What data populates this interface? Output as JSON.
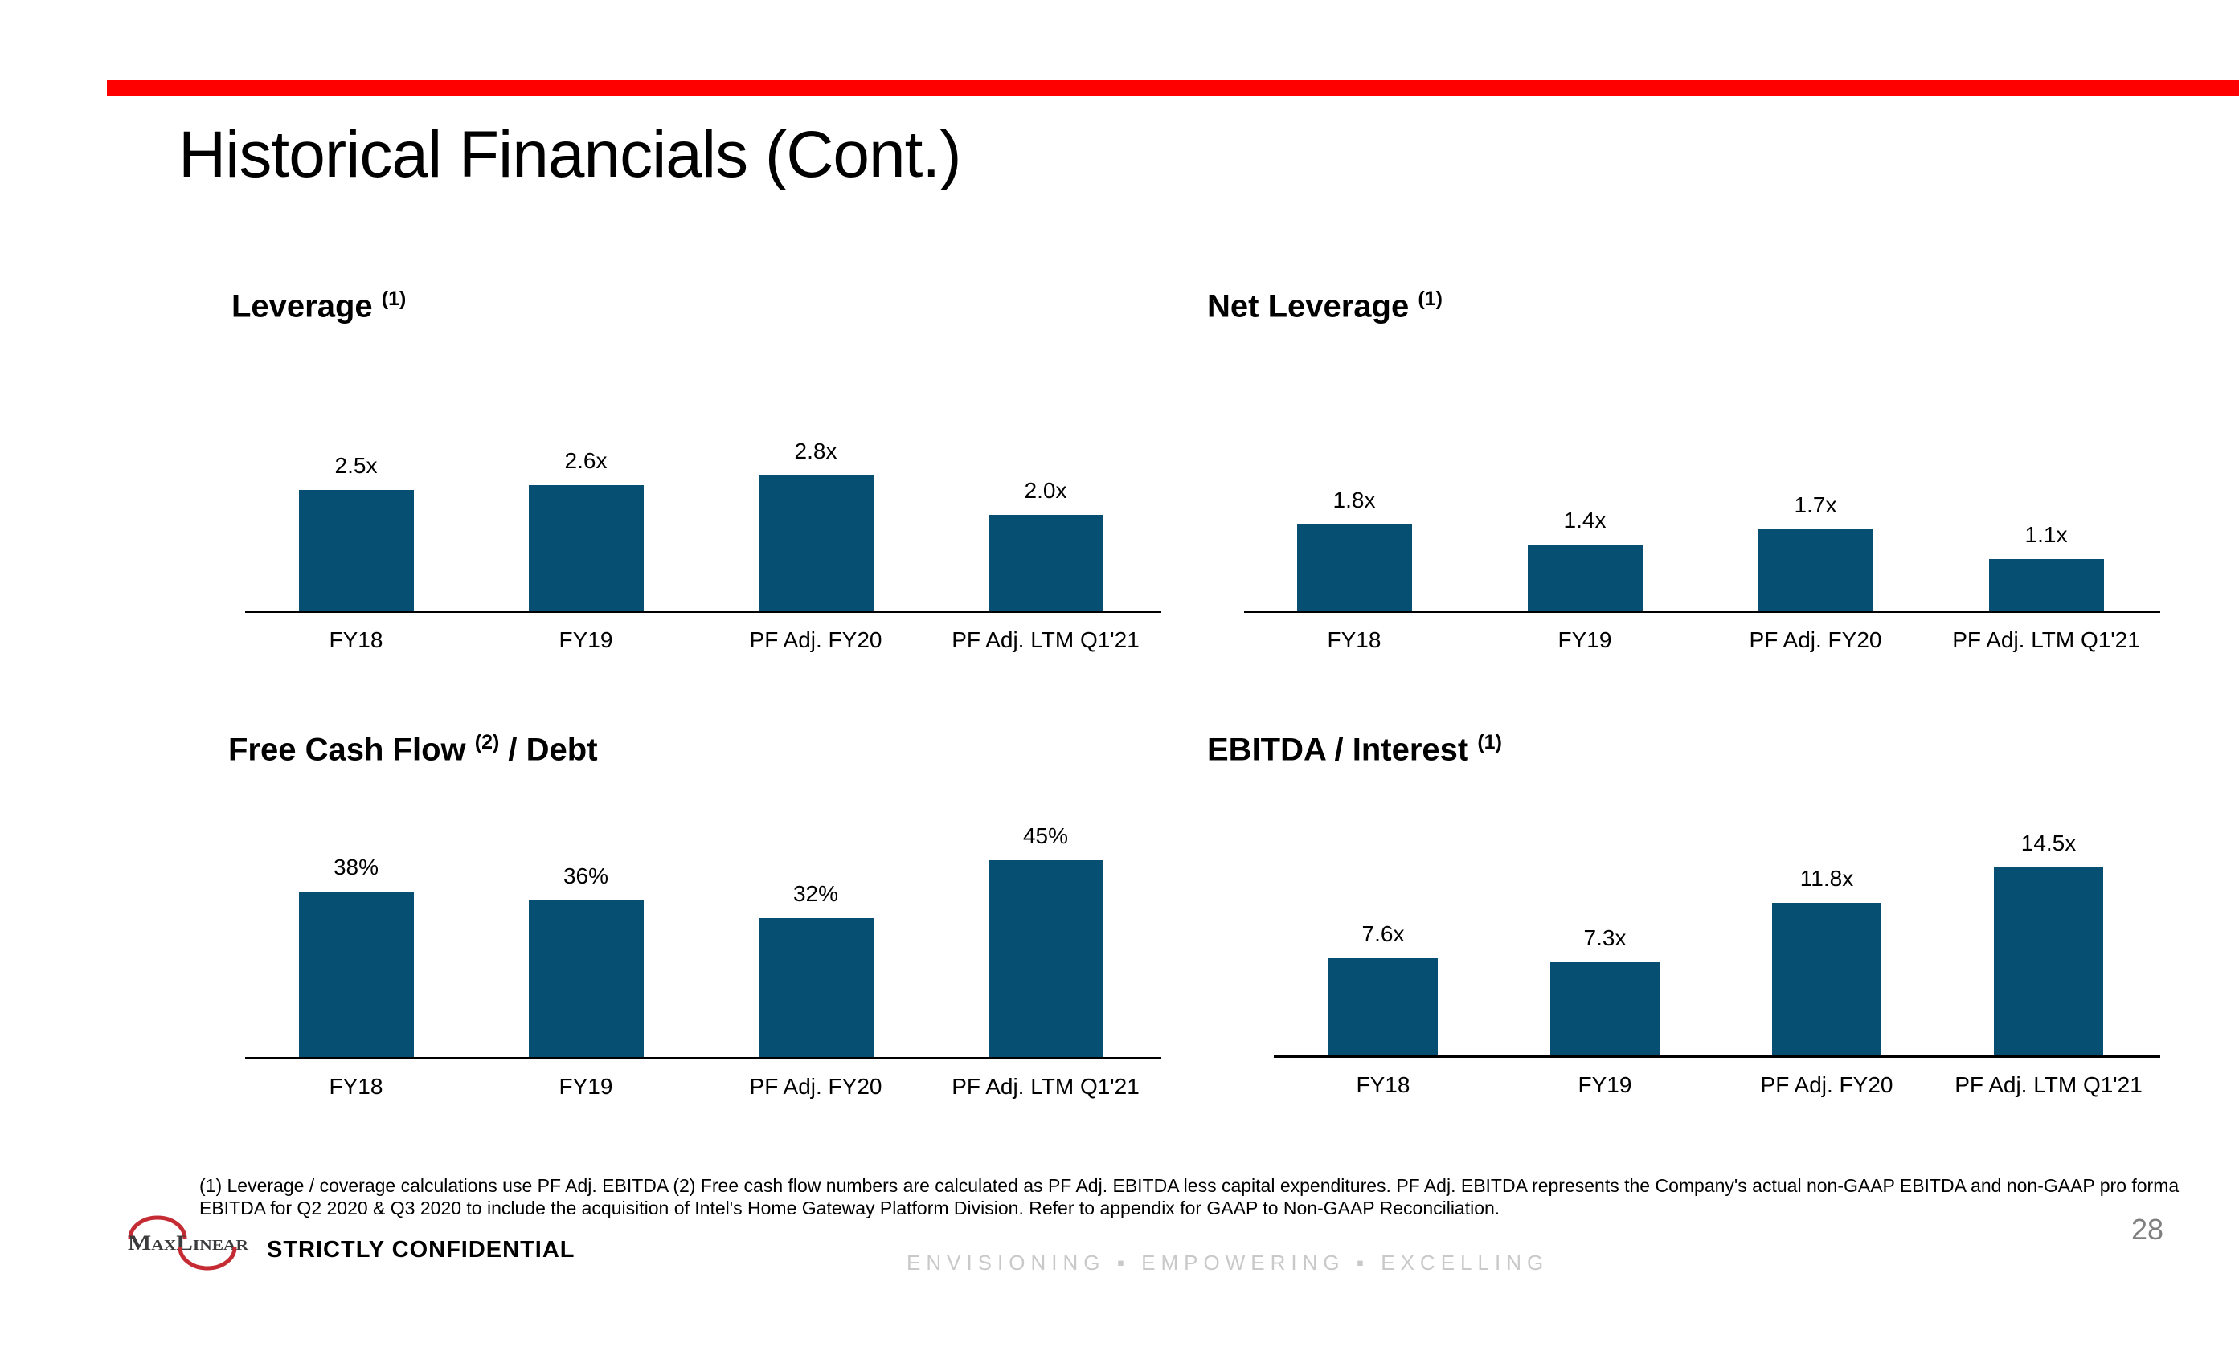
{
  "slide": {
    "title": "Historical Financials (Cont.)",
    "page_number": "28",
    "footnote_lines": [
      "(1) Leverage / coverage calculations use PF Adj. EBITDA (2) Free cash flow numbers are calculated as PF Adj. EBITDA less capital expenditures. PF Adj. EBITDA represents the Company's actual non-GAAP EBITDA and non-GAAP pro forma",
      "EBITDA for Q2 2020 & Q3 2020 to include the acquisition of Intel's Home Gateway Platform Division. Refer to appendix for GAAP to Non-GAAP Reconciliation."
    ],
    "footer": {
      "logo_text": "MaxLinear",
      "confidential": "STRICTLY CONFIDENTIAL",
      "tagline": "ENVISIONING ▪ EMPOWERING ▪ EXCELLING"
    }
  },
  "colors": {
    "accent_red": "#ff0000",
    "bar_blue": "#064f73",
    "logo_red": "#c42b33",
    "tagline_gray": "#c9c9c9",
    "pagenum_gray": "#7f7f7f"
  },
  "chart_data": [
    {
      "type": "bar",
      "title_prefix": "Leverage ",
      "superscript": "(1)",
      "title_suffix": "",
      "categories": [
        "FY18",
        "FY19",
        "PF Adj. FY20",
        "PF Adj. LTM Q1'21"
      ],
      "values": [
        2.5,
        2.6,
        2.8,
        2.0
      ],
      "labels": [
        "2.5x",
        "2.6x",
        "2.8x",
        "2.0x"
      ],
      "unit": "x",
      "grid": false,
      "legend": "none"
    },
    {
      "type": "bar",
      "title_prefix": "Net Leverage ",
      "superscript": "(1)",
      "title_suffix": "",
      "categories": [
        "FY18",
        "FY19",
        "PF Adj. FY20",
        "PF Adj. LTM Q1'21"
      ],
      "values": [
        1.8,
        1.4,
        1.7,
        1.1
      ],
      "labels": [
        "1.8x",
        "1.4x",
        "1.7x",
        "1.1x"
      ],
      "unit": "x",
      "grid": false,
      "legend": "none"
    },
    {
      "type": "bar",
      "title_prefix": "Free Cash Flow ",
      "superscript": "(2)",
      "title_suffix": " / Debt",
      "categories": [
        "FY18",
        "FY19",
        "PF Adj. FY20",
        "PF Adj. LTM Q1'21"
      ],
      "values": [
        38,
        36,
        32,
        45
      ],
      "labels": [
        "38%",
        "36%",
        "32%",
        "45%"
      ],
      "unit": "%",
      "grid": false,
      "legend": "none"
    },
    {
      "type": "bar",
      "title_prefix": "EBITDA / Interest ",
      "superscript": "(1)",
      "title_suffix": "",
      "categories": [
        "FY18",
        "FY19",
        "PF Adj. FY20",
        "PF Adj. LTM Q1'21"
      ],
      "values": [
        7.6,
        7.3,
        11.8,
        14.5
      ],
      "labels": [
        "7.6x",
        "7.3x",
        "11.8x",
        "14.5x"
      ],
      "unit": "x",
      "grid": false,
      "legend": "none"
    }
  ]
}
